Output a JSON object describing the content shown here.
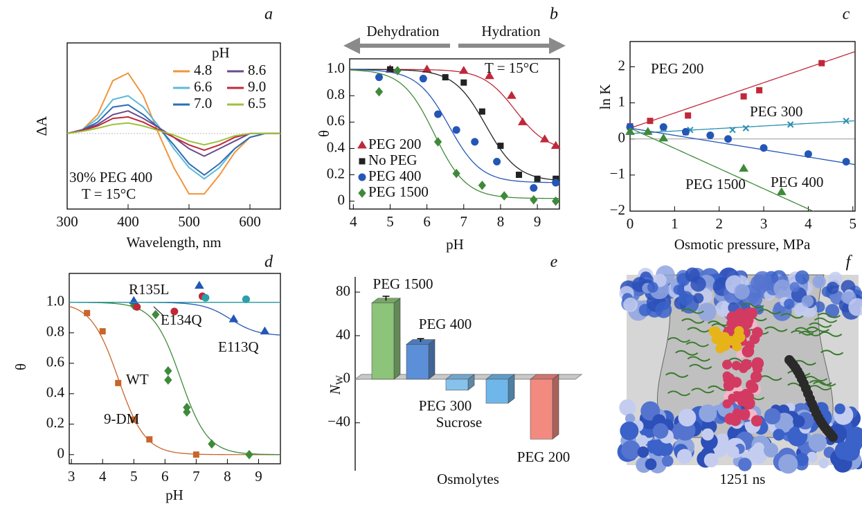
{
  "chart_data": [
    {
      "type": "line",
      "panel": "a",
      "xlabel": "Wavelength, nm",
      "ylabel": "ΔA",
      "legend_title": "pH",
      "annotations": [
        "30% PEG 400",
        "T = 15°C"
      ],
      "frame": true,
      "xlim": [
        300,
        650
      ],
      "ylim": [
        -1,
        1.2
      ],
      "xticks": [
        300,
        400,
        500,
        600
      ],
      "x": [
        300,
        325,
        350,
        375,
        400,
        425,
        450,
        475,
        500,
        525,
        550,
        575,
        600,
        625,
        650
      ],
      "series": [
        {
          "name": "4.8",
          "color": "#f0953a",
          "values": [
            0,
            0.05,
            0.25,
            0.7,
            0.8,
            0.5,
            0,
            -0.45,
            -0.8,
            -0.8,
            -0.55,
            -0.25,
            -0.05,
            0,
            0
          ]
        },
        {
          "name": "6.6",
          "color": "#5fb8d8",
          "values": [
            0,
            0.05,
            0.2,
            0.45,
            0.5,
            0.35,
            0.1,
            -0.2,
            -0.45,
            -0.6,
            -0.45,
            -0.2,
            -0.05,
            0,
            0
          ]
        },
        {
          "name": "7.0",
          "color": "#2e6db4",
          "values": [
            0,
            0.05,
            0.15,
            0.35,
            0.38,
            0.25,
            0.08,
            -0.15,
            -0.4,
            -0.55,
            -0.4,
            -0.2,
            -0.05,
            0,
            0
          ]
        },
        {
          "name": "8.6",
          "color": "#6a4a8c",
          "values": [
            0,
            0.05,
            0.12,
            0.25,
            0.3,
            0.2,
            0.08,
            -0.05,
            -0.2,
            -0.3,
            -0.2,
            -0.1,
            0,
            0,
            0
          ]
        },
        {
          "name": "9.0",
          "color": "#c0283a",
          "values": [
            0,
            0.04,
            0.1,
            0.2,
            0.22,
            0.15,
            0.05,
            -0.05,
            -0.15,
            -0.22,
            -0.15,
            -0.05,
            0,
            0,
            0
          ]
        },
        {
          "name": "6.5",
          "color": "#9cc23c",
          "values": [
            0,
            0.03,
            0.07,
            0.12,
            0.14,
            0.1,
            0.04,
            -0.02,
            -0.1,
            -0.15,
            -0.1,
            -0.03,
            0,
            0,
            0
          ]
        }
      ]
    },
    {
      "type": "scatter",
      "panel": "b",
      "xlabel": "pH",
      "ylabel": "θ",
      "frame": true,
      "annotations": [
        "Dehydration",
        "Hydration",
        "T = 15°C"
      ],
      "xlim": [
        3.9,
        9.6
      ],
      "ylim": [
        -0.06,
        1.08
      ],
      "xticks": [
        4,
        5,
        6,
        7,
        8,
        9
      ],
      "yticks": [
        0,
        0.2,
        0.4,
        0.6,
        0.8,
        {
          "value": 1,
          "label": "1.0"
        }
      ],
      "series": [
        {
          "name": "PEG 200",
          "color": "#c0283a",
          "marker": "triangle",
          "x": [
            5.0,
            6.0,
            7.0,
            7.7,
            8.3,
            8.6,
            9.2,
            9.5
          ],
          "values": [
            1.0,
            1.0,
            0.99,
            0.95,
            0.8,
            0.6,
            0.47,
            0.42
          ],
          "fit": {
            "pk": 8.4,
            "hi": 1.0,
            "lo": 0.38
          }
        },
        {
          "name": "No PEG",
          "color": "#222222",
          "marker": "square",
          "x": [
            5.0,
            6.5,
            7.0,
            7.5,
            8.0,
            8.5,
            9.0,
            9.5
          ],
          "values": [
            1.0,
            0.94,
            0.9,
            0.68,
            0.42,
            0.2,
            0.17,
            0.17
          ],
          "fit": {
            "pk": 7.6,
            "hi": 1.0,
            "lo": 0.15
          }
        },
        {
          "name": "PEG 400",
          "color": "#2456b8",
          "marker": "circle",
          "x": [
            4.7,
            5.9,
            6.3,
            6.8,
            7.3,
            7.9,
            8.9,
            9.5
          ],
          "values": [
            0.94,
            0.93,
            0.66,
            0.54,
            0.45,
            0.3,
            0.1,
            0.14
          ],
          "fit": {
            "pk": 6.6,
            "hi": 1.0,
            "lo": 0.14
          }
        },
        {
          "name": "PEG 1500",
          "color": "#3f8a3a",
          "marker": "diamond",
          "x": [
            4.7,
            5.2,
            6.3,
            6.8,
            7.5,
            8.1,
            8.9,
            9.5
          ],
          "values": [
            0.83,
            0.99,
            0.45,
            0.21,
            0.12,
            0.04,
            0.01,
            0.0
          ],
          "fit": {
            "pk": 6.2,
            "hi": 1.0,
            "lo": 0.02
          }
        }
      ]
    },
    {
      "type": "scatter",
      "panel": "c",
      "xlabel": "Osmotic pressure, MPa",
      "ylabel": "ln K",
      "frame": true,
      "zero_line": true,
      "xlim": [
        0,
        5.05
      ],
      "ylim": [
        -2,
        2.7
      ],
      "xticks": [
        0,
        1,
        2,
        3,
        4,
        5
      ],
      "yticks": [
        {
          "value": -2,
          "label": "−2"
        },
        {
          "value": -1,
          "label": "−1"
        },
        0,
        1,
        2
      ],
      "series": [
        {
          "name": "PEG 200",
          "color": "#c0283a",
          "marker": "square",
          "x": [
            0,
            0.45,
            1.3,
            2.55,
            2.9,
            4.3
          ],
          "values": [
            0.35,
            0.5,
            0.65,
            1.18,
            1.35,
            2.1
          ],
          "fit": {
            "slope": 0.42,
            "intercept": 0.3
          }
        },
        {
          "name": "PEG 300",
          "color": "#2a8fb0",
          "marker": "x",
          "x": [
            0,
            0.75,
            1.25,
            1.35,
            2.3,
            2.6,
            3.6,
            4.85
          ],
          "values": [
            0.2,
            0.3,
            0.18,
            0.25,
            0.25,
            0.3,
            0.4,
            0.5
          ],
          "fit": {
            "slope": 0.07,
            "intercept": 0.15
          }
        },
        {
          "name": "PEG 400",
          "color": "#2456b8",
          "marker": "circle",
          "x": [
            0,
            0.75,
            1.25,
            1.8,
            2.2,
            3.0,
            4.0,
            4.85
          ],
          "values": [
            0.33,
            0.33,
            0.2,
            0.1,
            0,
            -0.25,
            -0.42,
            -0.63
          ],
          "fit": {
            "slope": -0.2,
            "intercept": 0.3
          }
        },
        {
          "name": "PEG 1500",
          "color": "#3f8a3a",
          "marker": "triangle",
          "x": [
            0,
            0.4,
            0.75,
            2.55,
            3.4
          ],
          "values": [
            0.2,
            0.2,
            0.02,
            -0.82,
            -1.47
          ],
          "fit": {
            "slope": -0.56,
            "intercept": 0.3
          }
        }
      ]
    },
    {
      "type": "scatter",
      "panel": "d",
      "xlabel": "pH",
      "ylabel": "θ",
      "frame": true,
      "xlim": [
        2.93,
        9.7
      ],
      "ylim": [
        -0.06,
        1.19
      ],
      "xticks": [
        3,
        4,
        5,
        6,
        7,
        8,
        9
      ],
      "yticks": [
        0,
        0.2,
        0.4,
        0.6,
        0.8,
        {
          "value": 1,
          "label": "1.0"
        }
      ],
      "series": [
        {
          "name": "9-DM",
          "color": "#c8652a",
          "marker": "square",
          "x": [
            3.5,
            4.0,
            4.5,
            5.0,
            5.5,
            7.0
          ],
          "values": [
            0.93,
            0.81,
            0.47,
            0.23,
            0.1,
            0.0
          ],
          "fit": {
            "pk": 4.5,
            "hi": 1,
            "lo": 0
          }
        },
        {
          "name": "WT",
          "color": "#3f8a3a",
          "marker": "diamond",
          "x": [
            5.0,
            5.7,
            6.1,
            6.1,
            6.7,
            6.7,
            7.5,
            8.7
          ],
          "values": [
            0.98,
            0.92,
            0.55,
            0.49,
            0.31,
            0.28,
            0.07,
            0.0
          ],
          "fit": {
            "pk": 6.5,
            "hi": 1,
            "lo": 0
          }
        },
        {
          "name": "E134Q",
          "color": "#c0283a",
          "marker": "circle",
          "x": [
            5.1,
            6.3,
            7.2
          ],
          "values": [
            0.97,
            0.94,
            1.04
          ],
          "fit": {
            "level": 1
          }
        },
        {
          "name": "E113Q",
          "color": "#2456b8",
          "marker": "triangle",
          "x": [
            5.0,
            7.1,
            8.2,
            9.2
          ],
          "values": [
            1.01,
            1.11,
            0.89,
            0.81
          ],
          "fit": {
            "pk": 8.1,
            "hi": 1.0,
            "lo": 0.78
          }
        },
        {
          "name": "R135L",
          "color": "#2aa0a8",
          "marker": "circle",
          "x": [
            7.3,
            8.6,
            8.6
          ],
          "values": [
            1.03,
            1.02,
            1.02
          ],
          "fit": {
            "level": 1
          }
        }
      ]
    },
    {
      "type": "bar",
      "panel": "e",
      "xlabel": "Osmolytes",
      "ylabel": "N",
      "ylabel_subscript": "W",
      "ylim": [
        -84,
        94
      ],
      "yticks": [
        {
          "value": -40,
          "label": "−40"
        },
        0,
        40,
        80
      ],
      "categories": [
        "PEG 1500",
        "PEG 400",
        "PEG 300",
        "Sucrose",
        "PEG 200"
      ],
      "values": [
        70,
        32,
        -10,
        -22,
        -55
      ],
      "errors": [
        4,
        3,
        null,
        null,
        null
      ],
      "colors": [
        "#8cc479",
        "#5b8fd8",
        "#86c2ec",
        "#6fb6ea",
        "#f28a80"
      ]
    },
    {
      "type": "image",
      "panel": "f",
      "caption": "1251 ns"
    }
  ]
}
